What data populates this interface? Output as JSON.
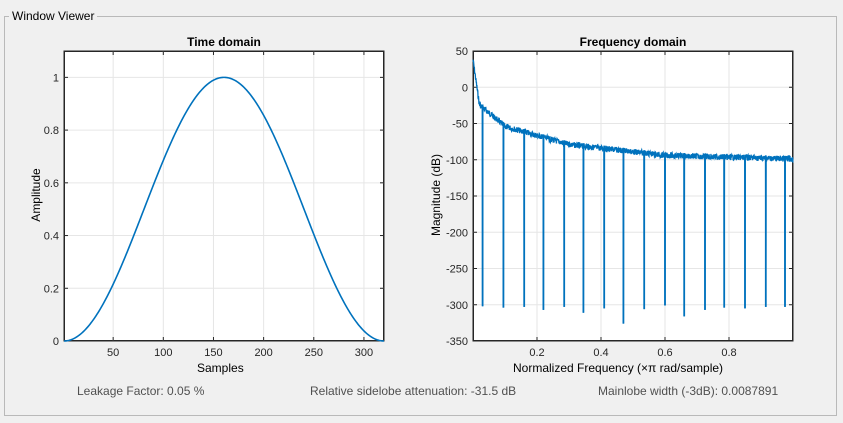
{
  "window": {
    "title": "Window Viewer"
  },
  "status": {
    "leakage": "Leakage Factor: 0.05 %",
    "sidelobe": "Relative sidelobe attenuation: -31.5 dB",
    "mainlobe": "Mainlobe width (-3dB): 0.0087891"
  },
  "chart_data": [
    {
      "type": "line",
      "title": "Time domain",
      "xlabel": "Samples",
      "ylabel": "Amplitude",
      "xlim": [
        1,
        320
      ],
      "ylim": [
        0,
        1.1
      ],
      "xticks": [
        50,
        100,
        150,
        200,
        250,
        300
      ],
      "yticks": [
        0,
        0.2,
        0.4,
        0.6,
        0.8,
        1
      ],
      "grid": true,
      "series": [
        {
          "color": "#0072bd",
          "function": "sin^2(pi*(n-1)/319)",
          "n_samples": 320,
          "peak": {
            "x": 160.5,
            "y": 1
          }
        }
      ]
    },
    {
      "type": "line",
      "title": "Frequency domain",
      "xlabel": "Normalized Frequency  (×π rad/sample)",
      "ylabel": "Magnitude (dB)",
      "xlim": [
        0,
        1
      ],
      "ylim": [
        -350,
        50
      ],
      "xticks": [
        0.2,
        0.4,
        0.6,
        0.8
      ],
      "yticks": [
        -350,
        -300,
        -250,
        -200,
        -150,
        -100,
        -50,
        0,
        50
      ],
      "grid": true,
      "series": [
        {
          "color": "#0072bd",
          "start_db": 42,
          "envelope_db_at": [
            [
              0.02,
              -20
            ],
            [
              0.1,
              -50
            ],
            [
              0.3,
              -75
            ],
            [
              0.6,
              -90
            ],
            [
              1.0,
              -95
            ]
          ],
          "nulls": [
            {
              "x": 0.03,
              "y": -302
            },
            {
              "x": 0.095,
              "y": -304
            },
            {
              "x": 0.16,
              "y": -303
            },
            {
              "x": 0.22,
              "y": -307
            },
            {
              "x": 0.285,
              "y": -303
            },
            {
              "x": 0.345,
              "y": -311
            },
            {
              "x": 0.41,
              "y": -305
            },
            {
              "x": 0.47,
              "y": -326
            },
            {
              "x": 0.535,
              "y": -306
            },
            {
              "x": 0.6,
              "y": -301
            },
            {
              "x": 0.66,
              "y": -316
            },
            {
              "x": 0.725,
              "y": -307
            },
            {
              "x": 0.785,
              "y": -304
            },
            {
              "x": 0.85,
              "y": -305
            },
            {
              "x": 0.915,
              "y": -303
            },
            {
              "x": 0.975,
              "y": -303
            }
          ]
        }
      ]
    }
  ]
}
